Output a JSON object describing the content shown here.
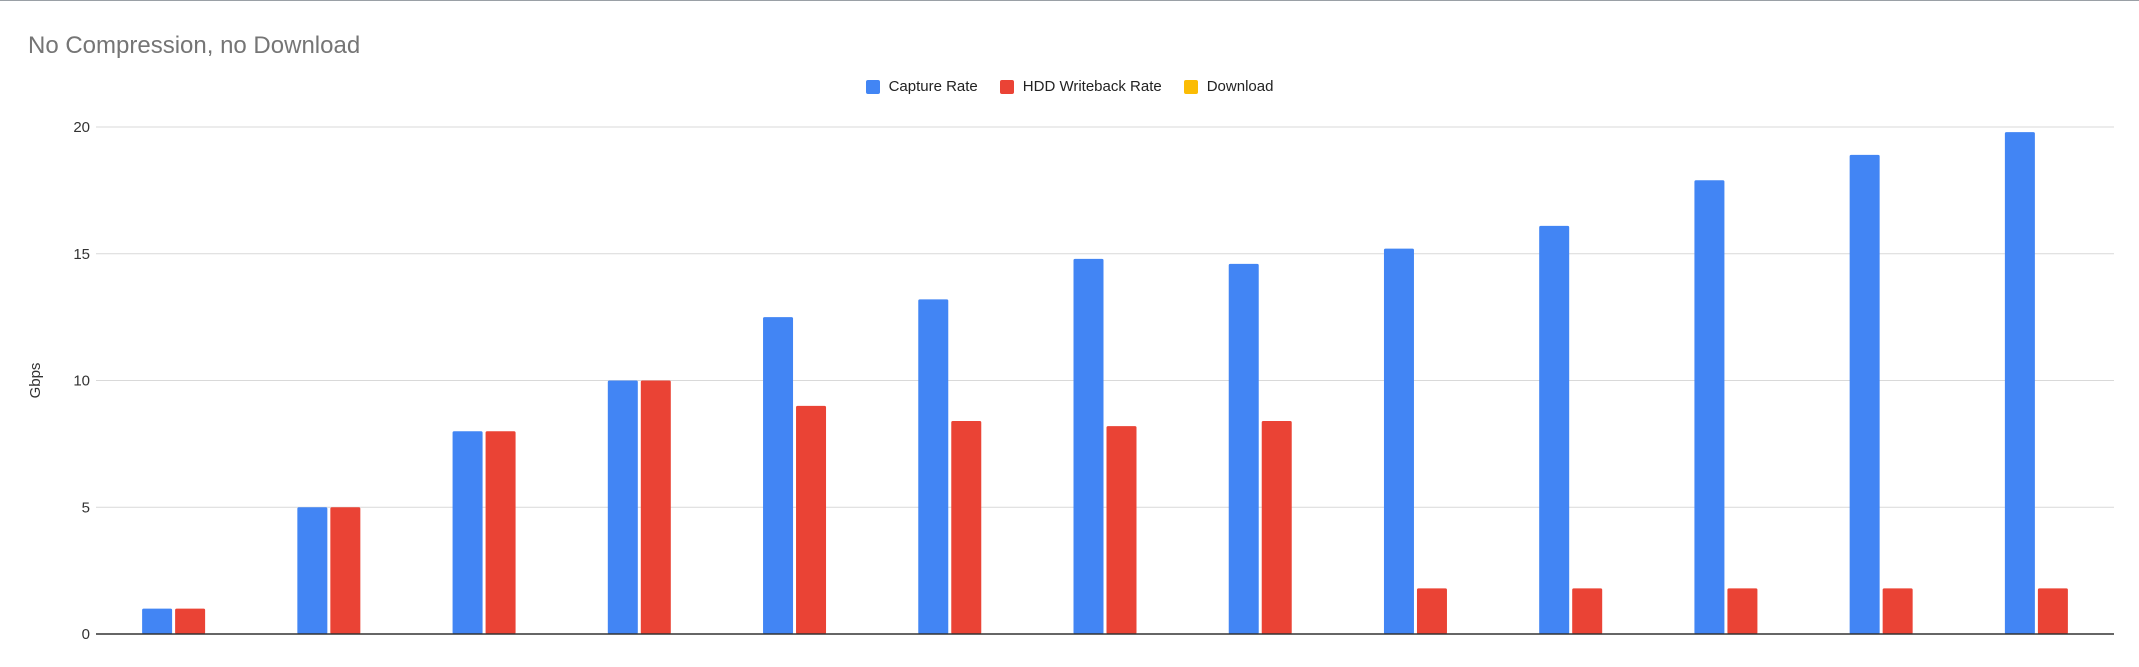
{
  "chart_data": {
    "type": "bar",
    "title": "No Compression, no Download",
    "xlabel": "",
    "ylabel": "Gbps",
    "ylim": [
      0,
      20
    ],
    "yticks": [
      "0",
      "5",
      "10",
      "15",
      "20"
    ],
    "grid": true,
    "legend_position": "top-center",
    "categories": [
      "",
      "",
      "",
      "",
      "",
      "",
      "",
      "",
      "",
      "",
      "",
      "",
      ""
    ],
    "series": [
      {
        "name": "Capture Rate",
        "color": "#4285f4",
        "values": [
          1,
          5,
          8,
          10,
          12.5,
          13.2,
          14.8,
          14.6,
          15.2,
          16.1,
          17.9,
          18.9,
          19.8
        ]
      },
      {
        "name": "HDD Writeback Rate",
        "color": "#ea4335",
        "values": [
          1,
          5,
          8,
          10,
          9,
          8.4,
          8.2,
          8.4,
          1.8,
          1.8,
          1.8,
          1.8,
          1.8
        ]
      },
      {
        "name": "Download",
        "color": "#fbbc04",
        "values": [
          0,
          0,
          0,
          0,
          0,
          0,
          0,
          0,
          0,
          0,
          0,
          0,
          0
        ]
      }
    ]
  }
}
